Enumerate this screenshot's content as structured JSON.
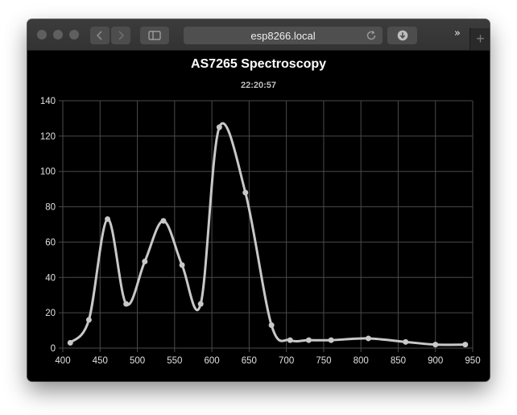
{
  "browser": {
    "address": "esp8266.local",
    "icons": {
      "back": "chevron-left-icon",
      "forward": "chevron-right-icon",
      "sidebar": "sidebar-icon",
      "reload": "reload-icon",
      "download": "download-icon",
      "more": "double-chevron-right-icon",
      "new_tab": "plus-icon"
    },
    "more_label": "»",
    "new_tab_label": "+"
  },
  "chart_data": {
    "type": "line",
    "title": "AS7265 Spectroscopy",
    "subtitle": "22:20:57",
    "xlabel": "",
    "ylabel": "",
    "xlim": [
      400,
      950
    ],
    "ylim": [
      0,
      140
    ],
    "xticks": [
      400,
      450,
      500,
      550,
      600,
      650,
      700,
      750,
      800,
      850,
      900,
      950
    ],
    "yticks": [
      0,
      20,
      40,
      60,
      80,
      100,
      120,
      140
    ],
    "grid": true,
    "legend": "none",
    "colors": {
      "line": "#c8c8c8",
      "grid": "#4a4a4a",
      "background": "#000000"
    },
    "series": [
      {
        "x": [
          410,
          435,
          460,
          485,
          510,
          535,
          560,
          585,
          610,
          645,
          680,
          705,
          730,
          760,
          810,
          860,
          900,
          940
        ],
        "values": [
          3,
          16,
          73,
          25,
          49,
          72,
          47,
          25,
          125,
          88,
          13,
          4.5,
          4.5,
          4.5,
          5.5,
          3.5,
          2,
          2
        ]
      }
    ]
  }
}
